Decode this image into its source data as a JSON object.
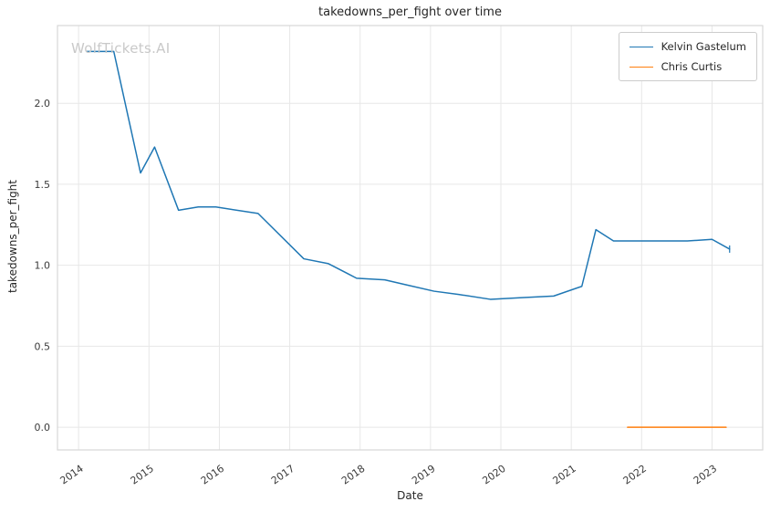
{
  "watermark": "WolfTickets.AI",
  "chart_data": {
    "type": "line",
    "title": "takedowns_per_fight over time",
    "xlabel": "Date",
    "ylabel": "takedowns_per_fight",
    "xlim": [
      2013.7,
      2023.72
    ],
    "ylim": [
      -0.14,
      2.48
    ],
    "x_ticks": [
      2014,
      2015,
      2016,
      2017,
      2018,
      2019,
      2020,
      2021,
      2022,
      2023
    ],
    "y_ticks": [
      0.0,
      0.5,
      1.0,
      1.5,
      2.0
    ],
    "y_tick_labels": [
      "0.0",
      "0.5",
      "1.0",
      "1.5",
      "2.0"
    ],
    "grid": true,
    "legend_position": "upper right",
    "series": [
      {
        "name": "Kelvin Gastelum",
        "color": "#1f77b4",
        "end_marker": "vline",
        "points": [
          [
            2014.12,
            2.32
          ],
          [
            2014.5,
            2.32
          ],
          [
            2014.88,
            1.57
          ],
          [
            2015.08,
            1.73
          ],
          [
            2015.42,
            1.34
          ],
          [
            2015.7,
            1.36
          ],
          [
            2015.95,
            1.36
          ],
          [
            2016.55,
            1.32
          ],
          [
            2017.2,
            1.04
          ],
          [
            2017.55,
            1.01
          ],
          [
            2017.95,
            0.92
          ],
          [
            2018.35,
            0.91
          ],
          [
            2018.65,
            0.88
          ],
          [
            2019.05,
            0.84
          ],
          [
            2019.4,
            0.82
          ],
          [
            2019.85,
            0.79
          ],
          [
            2020.3,
            0.8
          ],
          [
            2020.75,
            0.81
          ],
          [
            2021.15,
            0.87
          ],
          [
            2021.35,
            1.22
          ],
          [
            2021.6,
            1.15
          ],
          [
            2022.2,
            1.15
          ],
          [
            2022.65,
            1.15
          ],
          [
            2023.0,
            1.16
          ],
          [
            2023.25,
            1.1
          ]
        ]
      },
      {
        "name": "Chris Curtis",
        "color": "#ff7f0e",
        "points": [
          [
            2021.8,
            0.0
          ],
          [
            2023.2,
            0.0
          ]
        ]
      }
    ]
  }
}
